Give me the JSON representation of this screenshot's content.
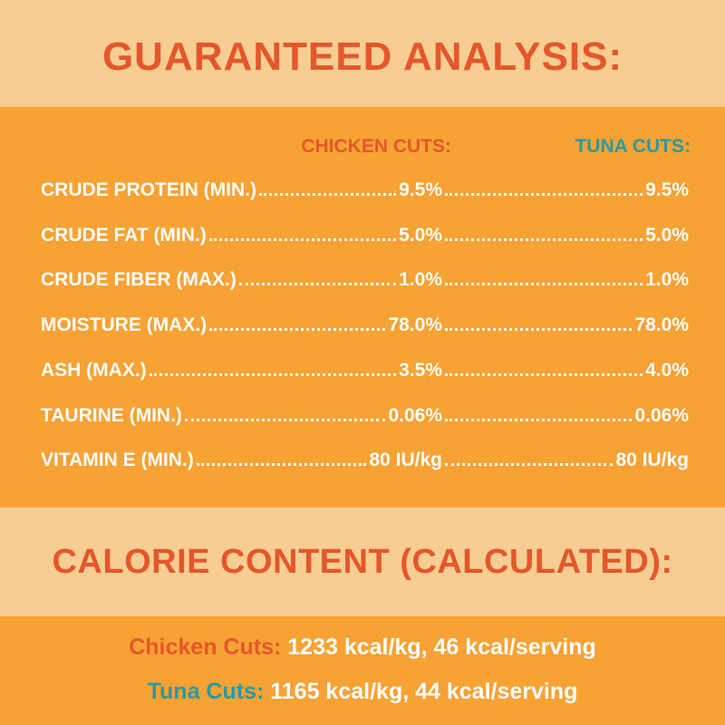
{
  "title": "GUARANTEED ANALYSIS:",
  "columns": {
    "chicken": "CHICKEN CUTS:",
    "tuna": "TUNA CUTS:"
  },
  "rows": [
    {
      "label": "CRUDE PROTEIN (MIN.)",
      "chicken": "9.5%",
      "tuna": "9.5%"
    },
    {
      "label": "CRUDE FAT (MIN.)",
      "chicken": "5.0%",
      "tuna": "5.0%"
    },
    {
      "label": "CRUDE FIBER (MAX.)",
      "chicken": "1.0%",
      "tuna": "1.0%"
    },
    {
      "label": "MOISTURE (MAX.)",
      "chicken": "78.0%",
      "tuna": "78.0%"
    },
    {
      "label": "ASH (MAX.)",
      "chicken": "3.5%",
      "tuna": "4.0%"
    },
    {
      "label": "TAURINE (MIN.)",
      "chicken": "0.06%",
      "tuna": "0.06%"
    },
    {
      "label": "VITAMIN E (MIN.)",
      "chicken": "80 IU/kg",
      "tuna": "80 IU/kg"
    }
  ],
  "calorie_title": "CALORIE CONTENT (CALCULATED):",
  "calories": [
    {
      "label": "Chicken Cuts:",
      "value": "1233 kcal/kg, 46 kcal/serving"
    },
    {
      "label": "Tuna Cuts:",
      "value": "1165 kcal/kg, 44 kcal/serving"
    }
  ],
  "colors": {
    "light": "#F7CD93",
    "orange": "#F7A234",
    "red": "#E4572A",
    "teal": "#2A9AA0"
  }
}
